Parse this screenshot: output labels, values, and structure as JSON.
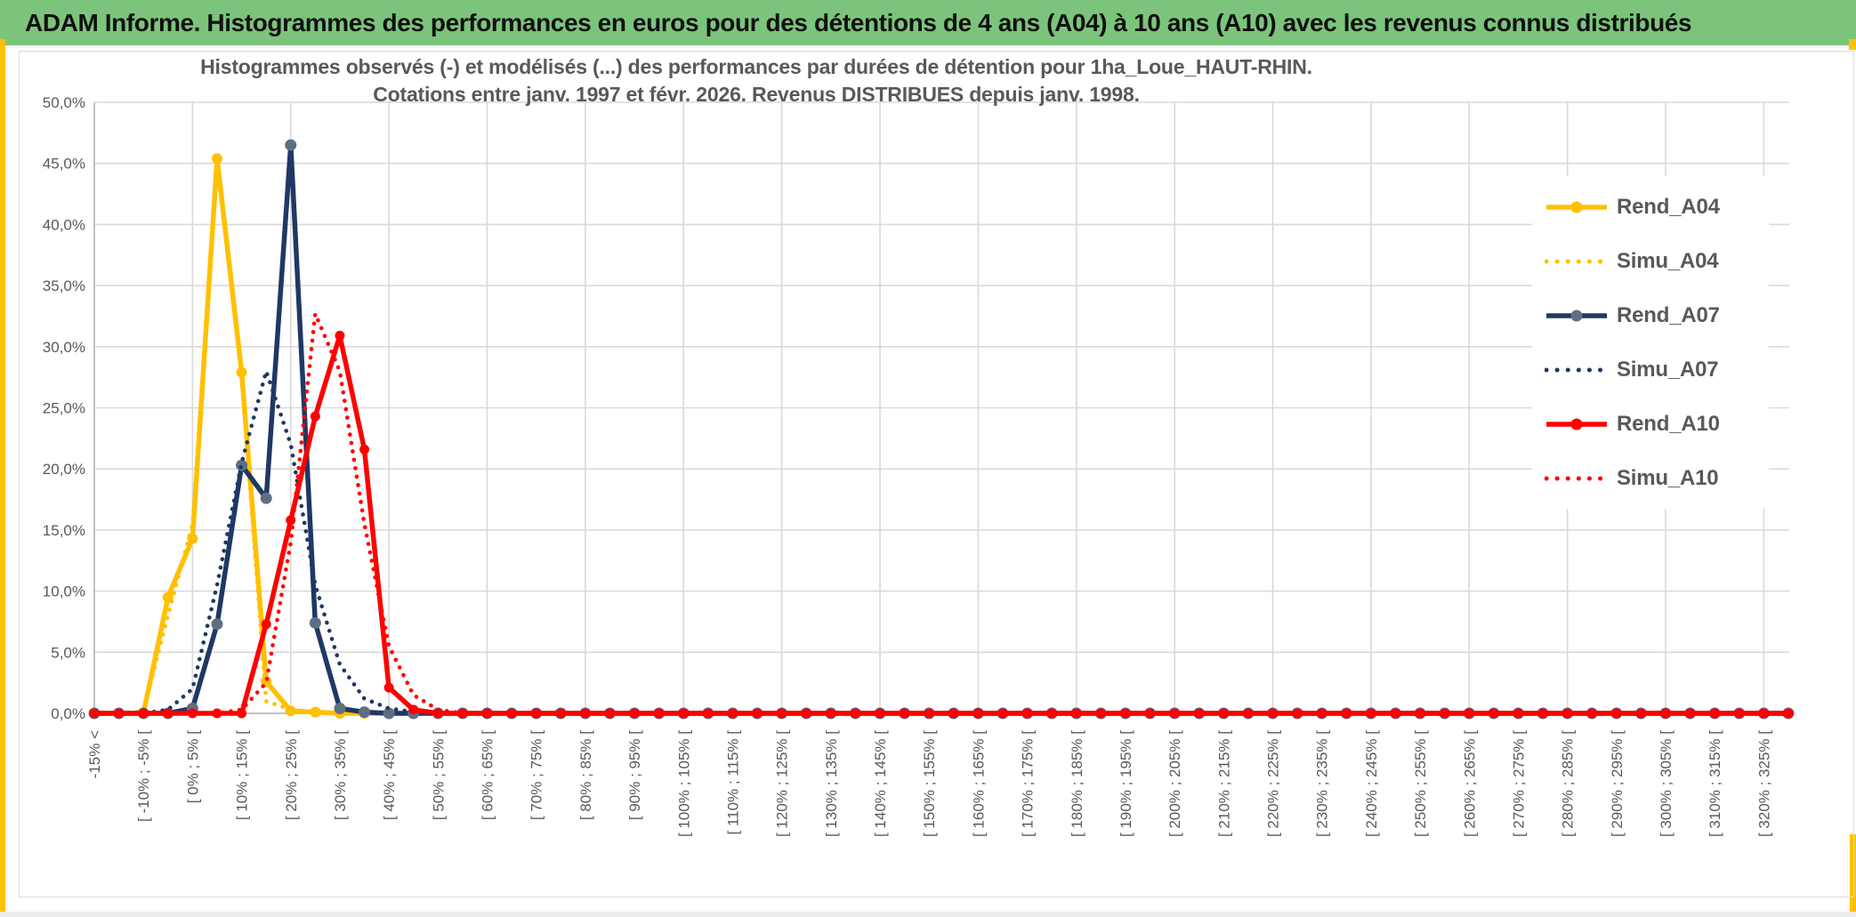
{
  "header": {
    "title": "ADAM Informe. Histogrammes des performances en euros pour des détentions de 4 ans (A04) à 10 ans (A10) avec les revenus connus distribués"
  },
  "colors": {
    "header_green": "#7CC47C",
    "accent_yellow": "#FFC000",
    "grid_gray": "#D9D9D9",
    "axis_gray": "#BDBDBD",
    "label_gray": "#595959",
    "series_gold": "#FFC000",
    "series_navy": "#1F3864",
    "series_navy_marker": "#5F6F82",
    "series_red": "#FF0000"
  },
  "chart_data": {
    "type": "line",
    "title_line1": "Histogrammes observés (-) et modélisés (...) des performances par durées de détention pour 1ha_Loue_HAUT-RHIN.",
    "title_line2": "Cotations entre janv. 1997 et févr. 2026. Revenus DISTRIBUES depuis janv. 1998.",
    "ylabel": "",
    "xlabel": "",
    "ylim": [
      0,
      50
    ],
    "grid": true,
    "legend_position": "right",
    "bin_count": 70,
    "bin_width_percent": 5,
    "label_every_n_bins": 2,
    "y_tick_labels": [
      "0,0%",
      "5,0%",
      "10,0%",
      "15,0%",
      "20,0%",
      "25,0%",
      "30,0%",
      "35,0%",
      "40,0%",
      "45,0%",
      "50,0%"
    ],
    "x_tick_labels": [
      "-15% <",
      "[ -10% ; -5% [",
      "[ 0% ; 5% [",
      "[ 10% ; 15% [",
      "[ 20% ; 25% [",
      "[ 30% ; 35% [",
      "[ 40% ; 45% [",
      "[ 50% ; 55% [",
      "[ 60% ; 65% [",
      "[ 70% ; 75% [",
      "[ 80% ; 85% [",
      "[ 90% ; 95% [",
      "[ 100% ; 105% [",
      "[ 110% ; 115% [",
      "[ 120% ; 125% [",
      "[ 130% ; 135% [",
      "[ 140% ; 145% [",
      "[ 150% ; 155% [",
      "[ 160% ; 165% [",
      "[ 170% ; 175% [",
      "[ 180% ; 185% [",
      "[ 190% ; 195% [",
      "[ 200% ; 205% [",
      "[ 210% ; 215% [",
      "[ 220% ; 225% [",
      "[ 230% ; 235% [",
      "[ 240% ; 245% [",
      "[ 250% ; 255% [",
      "[ 260% ; 265% [",
      "[ 270% ; 275% [",
      "[ 280% ; 285% [",
      "[ 290% ; 295% [",
      "[ 300% ; 305% [",
      "[ 310% ; 315% [",
      "[ 320% ; 325% ["
    ],
    "series": [
      {
        "name": "Rend_A04",
        "style": "solid",
        "color": "#FFC000",
        "marker_color": "#FFC000",
        "marker_radius": 6,
        "values": [
          0,
          0,
          0,
          9.5,
          14.3,
          45.4,
          27.9,
          2.6,
          0.2,
          0.1,
          0,
          0,
          0,
          0,
          0,
          0,
          0,
          0,
          0,
          0,
          0,
          0,
          0,
          0,
          0,
          0,
          0,
          0,
          0,
          0,
          0,
          0,
          0,
          0,
          0,
          0,
          0,
          0,
          0,
          0,
          0,
          0,
          0,
          0,
          0,
          0,
          0,
          0,
          0,
          0,
          0,
          0,
          0,
          0,
          0,
          0,
          0,
          0,
          0,
          0,
          0,
          0,
          0,
          0,
          0,
          0,
          0,
          0,
          0,
          0
        ]
      },
      {
        "name": "Simu_A04",
        "style": "dotted",
        "color": "#FFC000",
        "values": [
          0,
          0,
          0.2,
          8,
          15.5,
          45,
          27.5,
          1,
          0.3,
          0.1,
          0,
          0,
          0,
          0,
          0,
          0,
          0,
          0,
          0,
          0,
          0,
          0,
          0,
          0,
          0,
          0,
          0,
          0,
          0,
          0,
          0,
          0,
          0,
          0,
          0,
          0,
          0,
          0,
          0,
          0,
          0,
          0,
          0,
          0,
          0,
          0,
          0,
          0,
          0,
          0,
          0,
          0,
          0,
          0,
          0,
          0,
          0,
          0,
          0,
          0,
          0,
          0,
          0,
          0,
          0,
          0,
          0,
          0,
          0,
          0
        ]
      },
      {
        "name": "Rend_A07",
        "style": "solid",
        "color": "#1F3864",
        "marker_color": "#5F6F82",
        "marker_radius": 6.5,
        "values": [
          0,
          0,
          0,
          0,
          0.4,
          7.3,
          20.3,
          17.6,
          46.5,
          7.4,
          0.4,
          0.1,
          0,
          0,
          0,
          0,
          0,
          0,
          0,
          0,
          0,
          0,
          0,
          0,
          0,
          0,
          0,
          0,
          0,
          0,
          0,
          0,
          0,
          0,
          0,
          0,
          0,
          0,
          0,
          0,
          0,
          0,
          0,
          0,
          0,
          0,
          0,
          0,
          0,
          0,
          0,
          0,
          0,
          0,
          0,
          0,
          0,
          0,
          0,
          0,
          0,
          0,
          0,
          0,
          0,
          0,
          0,
          0,
          0,
          0
        ]
      },
      {
        "name": "Simu_A07",
        "style": "dotted",
        "color": "#1F3864",
        "values": [
          0,
          0,
          0,
          0.3,
          2,
          10.5,
          20.5,
          28,
          22,
          10.5,
          4,
          1.2,
          0.4,
          0.1,
          0,
          0,
          0,
          0,
          0,
          0,
          0,
          0,
          0,
          0,
          0,
          0,
          0,
          0,
          0,
          0,
          0,
          0,
          0,
          0,
          0,
          0,
          0,
          0,
          0,
          0,
          0,
          0,
          0,
          0,
          0,
          0,
          0,
          0,
          0,
          0,
          0,
          0,
          0,
          0,
          0,
          0,
          0,
          0,
          0,
          0,
          0,
          0,
          0,
          0,
          0,
          0,
          0,
          0,
          0,
          0
        ]
      },
      {
        "name": "Rend_A10",
        "style": "solid",
        "color": "#FF0000",
        "marker_color": "#FF0000",
        "marker_radius": 5.5,
        "values": [
          0,
          0,
          0,
          0,
          0,
          0,
          0,
          7.3,
          15.8,
          24.3,
          30.9,
          21.6,
          2.1,
          0.3,
          0,
          0,
          0,
          0,
          0,
          0,
          0,
          0,
          0,
          0,
          0,
          0,
          0,
          0,
          0,
          0,
          0,
          0,
          0,
          0,
          0,
          0,
          0,
          0,
          0,
          0,
          0,
          0,
          0,
          0,
          0,
          0,
          0,
          0,
          0,
          0,
          0,
          0,
          0,
          0,
          0,
          0,
          0,
          0,
          0,
          0,
          0,
          0,
          0,
          0,
          0,
          0,
          0,
          0,
          0,
          0
        ]
      },
      {
        "name": "Simu_A10",
        "style": "dotted",
        "color": "#FF0000",
        "values": [
          0,
          0,
          0,
          0,
          0,
          0,
          0.3,
          2.5,
          14,
          32.7,
          28,
          15.5,
          5.5,
          1.5,
          0.3,
          0,
          0,
          0,
          0,
          0,
          0,
          0,
          0,
          0,
          0,
          0,
          0,
          0,
          0,
          0,
          0,
          0,
          0,
          0,
          0,
          0,
          0,
          0,
          0,
          0,
          0,
          0,
          0,
          0,
          0,
          0,
          0,
          0,
          0,
          0,
          0,
          0,
          0,
          0,
          0,
          0,
          0,
          0,
          0,
          0,
          0,
          0,
          0,
          0,
          0,
          0,
          0,
          0,
          0,
          0
        ]
      }
    ]
  }
}
